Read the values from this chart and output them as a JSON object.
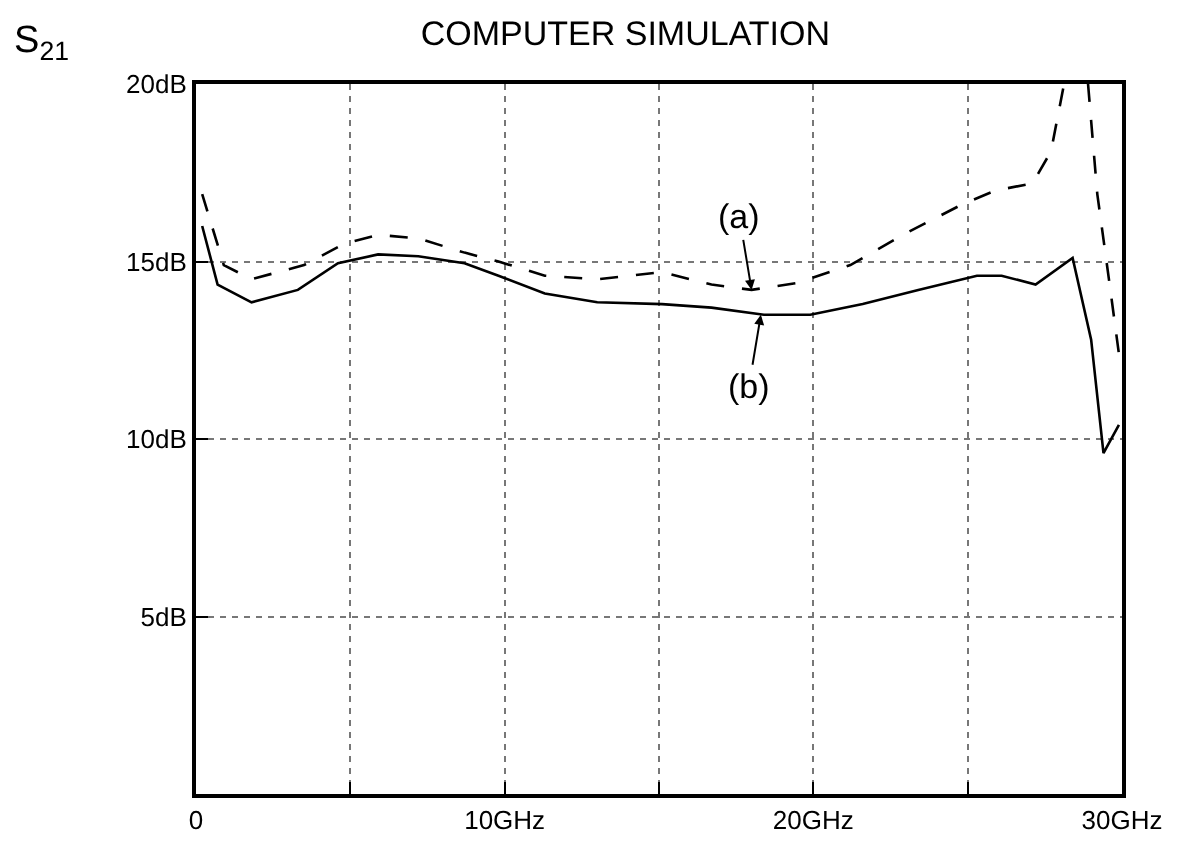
{
  "chart_data": {
    "type": "line",
    "title": "COMPUTER SIMULATION",
    "ylabel": "S$_{21}$",
    "series": [
      {
        "color": "#000000",
        "line_style": "dashed",
        "x": [
          0.2,
          0.9,
          1.8,
          3.5,
          4.8,
          5.9,
          7.2,
          8.7,
          9.8,
          11.3,
          13.0,
          15.1,
          16.7,
          18.0,
          19.5,
          21.2,
          22.9,
          24.8,
          25.9,
          27.1,
          27.7,
          28.1,
          28.5,
          28.9,
          29.2,
          29.6,
          29.9
        ],
        "values": [
          16.9,
          14.9,
          14.5,
          14.9,
          15.5,
          15.75,
          15.65,
          15.25,
          15.0,
          14.6,
          14.5,
          14.7,
          14.35,
          14.2,
          14.4,
          14.9,
          15.75,
          16.6,
          17.0,
          17.2,
          18.1,
          19.9,
          null,
          20.0,
          16.9,
          14.35,
          12.4
        ]
      },
      {
        "color": "#000000",
        "line_style": "solid",
        "x": [
          0.2,
          0.7,
          1.8,
          3.3,
          4.6,
          5.9,
          7.2,
          8.7,
          9.8,
          11.3,
          13.0,
          15.1,
          16.7,
          18.4,
          19.9,
          21.6,
          23.4,
          25.3,
          26.1,
          27.2,
          28.4,
          29.0,
          29.4,
          29.9
        ],
        "values": [
          16.0,
          14.35,
          13.85,
          14.2,
          14.95,
          15.2,
          15.15,
          14.95,
          14.6,
          14.1,
          13.85,
          13.8,
          13.7,
          13.5,
          13.5,
          13.8,
          14.2,
          14.6,
          14.6,
          14.35,
          15.1,
          12.8,
          9.6,
          10.4
        ]
      }
    ],
    "annotations": [
      {
        "text": "(a)",
        "x": 18.0,
        "y": 14.2
      },
      {
        "text": "(b)",
        "x": 18.3,
        "y": 13.5
      }
    ],
    "xlim": [
      0,
      30
    ],
    "xticks": [
      0,
      {
        "value": 5,
        "label": null
      },
      {
        "value": 10,
        "label": "10GHz"
      },
      {
        "value": 15,
        "label": null
      },
      {
        "value": 20,
        "label": "20GHz"
      },
      {
        "value": 25,
        "label": null
      },
      {
        "value": 30,
        "label": "30GHz"
      }
    ],
    "ylim": [
      0,
      20
    ],
    "yticks": [
      {
        "value": 0,
        "label": null
      },
      {
        "value": 5,
        "label": "5dB"
      },
      {
        "value": 10,
        "label": "10dB"
      },
      {
        "value": 15,
        "label": "15dB"
      },
      {
        "value": 20,
        "label": "20dB"
      }
    ],
    "grid": true
  }
}
